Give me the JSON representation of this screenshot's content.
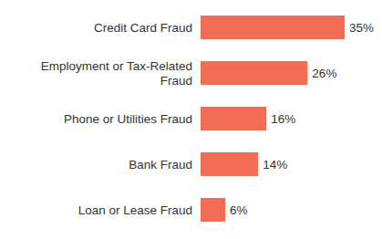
{
  "chart_data": {
    "type": "bar",
    "orientation": "horizontal",
    "categories": [
      "Credit Card Fraud",
      "Employment or Tax-Related Fraud",
      "Phone or Utilities Fraud",
      "Bank Fraud",
      "Loan or Lease Fraud"
    ],
    "values": [
      35,
      26,
      16,
      14,
      6
    ],
    "value_labels": [
      "35%",
      "26%",
      "16%",
      "14%",
      "6%"
    ],
    "data_labels": true,
    "color": "#f26c56",
    "xlim": [
      0,
      35
    ],
    "grid": false,
    "tick_labels": "y"
  }
}
